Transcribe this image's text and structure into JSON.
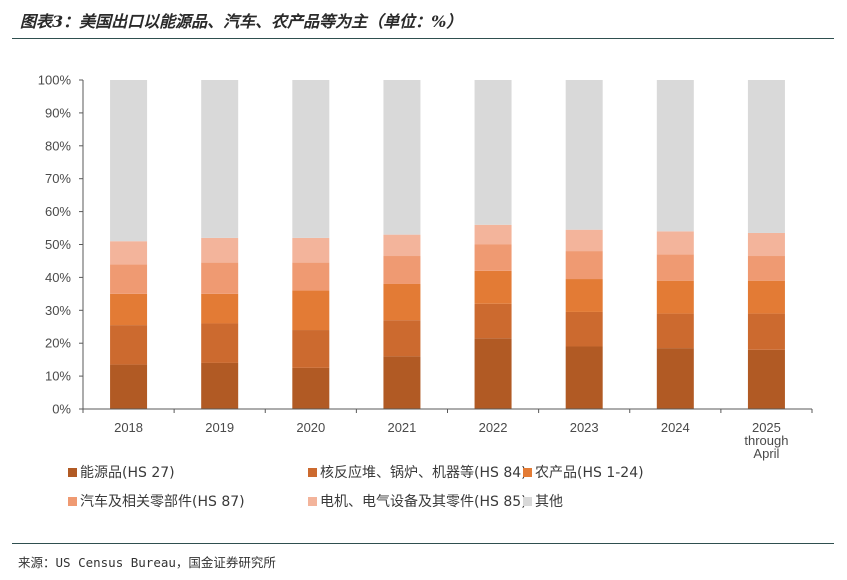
{
  "title": "图表3：美国出口以能源品、汽车、农产品等为主（单位：%）",
  "source": "来源：US Census Bureau，国金证券研究所",
  "colors": {
    "series": [
      "#b15a24",
      "#cc6a2f",
      "#e37b35",
      "#ef9a72",
      "#f3b49b",
      "#d9d9d9"
    ],
    "axis": "#595959"
  },
  "chart_data": {
    "type": "bar",
    "stacked": true,
    "categories": [
      "2018",
      "2019",
      "2020",
      "2021",
      "2022",
      "2023",
      "2024",
      "2025 through April"
    ],
    "ylim": [
      0,
      100
    ],
    "yticks": [
      "0%",
      "10%",
      "20%",
      "30%",
      "40%",
      "50%",
      "60%",
      "70%",
      "80%",
      "90%",
      "100%"
    ],
    "grid": false,
    "legend_position": "bottom",
    "series": [
      {
        "name": "能源品(HS 27)",
        "values": [
          13.5,
          14,
          12.5,
          16,
          21.5,
          19,
          18.5,
          18
        ]
      },
      {
        "name": "核反应堆、锅炉、机器等(HS 84)",
        "values": [
          12,
          12,
          11.5,
          11,
          10.5,
          10.5,
          10.5,
          11
        ]
      },
      {
        "name": "农产品(HS 1-24)",
        "values": [
          9.5,
          9,
          12,
          11,
          10,
          10,
          10,
          10
        ]
      },
      {
        "name": "汽车及相关零部件(HS 87)",
        "values": [
          9,
          9.5,
          8.5,
          8.5,
          8,
          8.5,
          8,
          7.5
        ]
      },
      {
        "name": "电机、电气设备及其零件(HS 85)",
        "values": [
          7,
          7.5,
          7.5,
          6.5,
          6,
          6.5,
          7,
          7
        ]
      },
      {
        "name": "其他",
        "values": [
          49,
          48,
          48,
          47,
          44,
          45.5,
          46,
          46.5
        ]
      }
    ]
  }
}
